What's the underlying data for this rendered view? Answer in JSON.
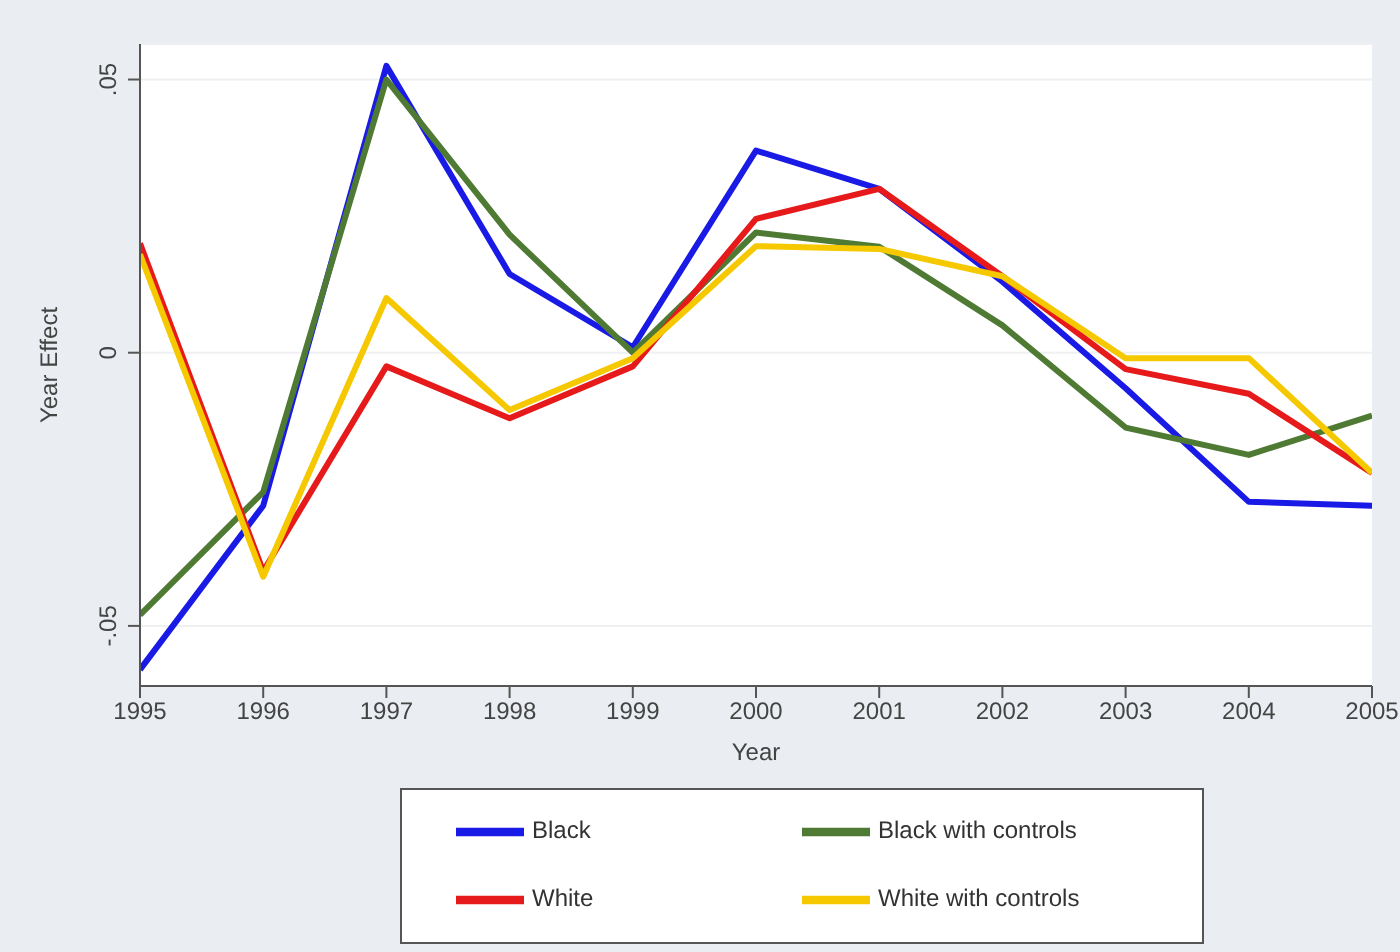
{
  "chart_data": {
    "type": "line",
    "xlabel": "Year",
    "ylabel": "Year Effect",
    "x": [
      1995,
      1996,
      1997,
      1998,
      1999,
      2000,
      2001,
      2002,
      2003,
      2004,
      2005
    ],
    "xlim": [
      1995,
      2005
    ],
    "xticks": [
      1995,
      1996,
      1997,
      1998,
      1999,
      2000,
      2001,
      2002,
      2003,
      2004,
      2005
    ],
    "ylim": [
      -0.061,
      0.0565
    ],
    "yticks": [
      {
        "value": -0.05,
        "label": "-.05"
      },
      0,
      {
        "value": 0.05,
        "label": ".05"
      }
    ],
    "grid": "y",
    "legend": "bottom",
    "marker": "none",
    "line_style": "solid",
    "series": [
      {
        "name": "Black",
        "color": "#1a1ae6",
        "values": [
          -0.058,
          -0.028,
          0.0525,
          0.0144,
          0.001,
          0.037,
          0.03,
          0.013,
          -0.0065,
          -0.0273,
          -0.028
        ]
      },
      {
        "name": "Black with controls",
        "color": "#4f7a33",
        "values": [
          -0.048,
          -0.0255,
          0.05,
          0.0216,
          0,
          0.022,
          0.0194,
          0.005,
          -0.0137,
          -0.0187,
          -0.0115
        ]
      },
      {
        "name": "White",
        "color": "#e61a1a",
        "values": [
          0.02,
          -0.04,
          -0.0025,
          -0.012,
          -0.0025,
          0.0245,
          0.03,
          0.014,
          -0.003,
          -0.0075,
          -0.022
        ]
      },
      {
        "name": "White with controls",
        "color": "#f5c800",
        "values": [
          0.018,
          -0.041,
          0.01,
          -0.0105,
          -0.001,
          0.0195,
          0.019,
          0.014,
          -0.001,
          -0.001,
          -0.022
        ]
      }
    ]
  }
}
